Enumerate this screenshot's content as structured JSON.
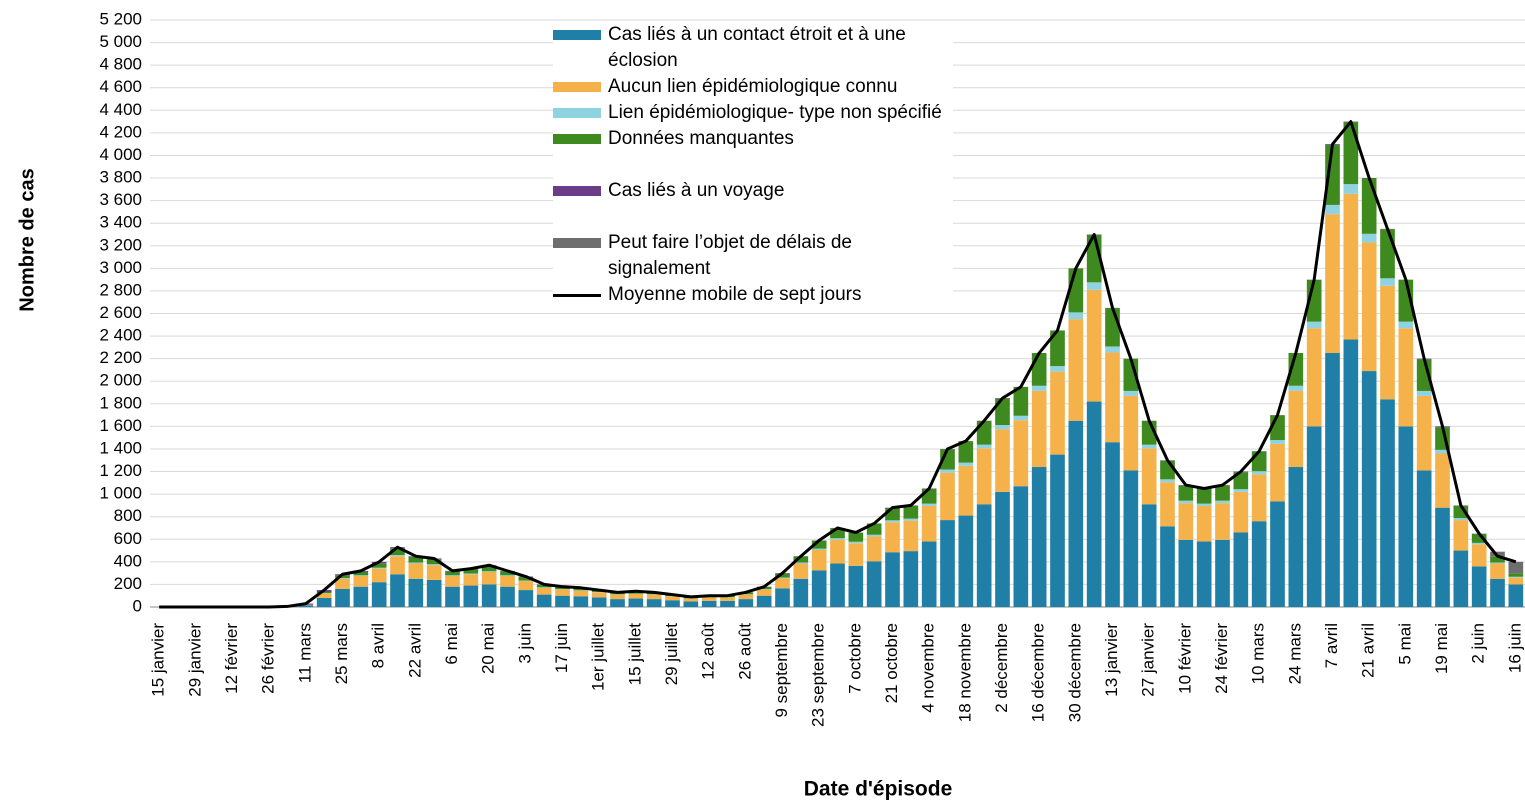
{
  "chart_data": {
    "type": "stacked-bar",
    "y_label": "Nombre de cas",
    "x_label": "Date d'épisode",
    "categories": [
      "15 janvier",
      null,
      "29 janvier",
      null,
      "12 février",
      null,
      "26 février",
      null,
      "11 mars",
      null,
      "25 mars",
      null,
      "8 avril",
      null,
      "22 avril",
      null,
      "6 mai",
      null,
      "20 mai",
      null,
      "3 juin",
      null,
      "17 juin",
      null,
      "1er juillet",
      null,
      "15 juillet",
      null,
      "29 juillet",
      null,
      "12 août",
      null,
      "26 août",
      null,
      "9 septembre",
      null,
      "23 septembre",
      null,
      "7 octobre",
      null,
      "21 octobre",
      null,
      "4 novembre",
      null,
      "18 novembre",
      null,
      "2 décembre",
      null,
      "16 décembre",
      null,
      "30 décembre",
      null,
      "13 janvier",
      null,
      "27 janvier",
      null,
      "10 février",
      null,
      "24 février",
      null,
      "10 mars",
      null,
      "24 mars",
      null,
      "7 avril",
      null,
      "21 avril",
      null,
      "5 mai",
      null,
      "19 mai",
      null,
      "2 juin",
      null,
      "16 juin"
    ],
    "series": [
      {
        "name": "Cas liés à un contact étroit et à une éclosion",
        "color": "#1f7fa6",
        "values": [
          0,
          0,
          0,
          0,
          0,
          0,
          0,
          3,
          15,
          80,
          160,
          180,
          220,
          290,
          250,
          240,
          180,
          190,
          200,
          180,
          150,
          110,
          100,
          95,
          85,
          70,
          75,
          70,
          60,
          50,
          55,
          55,
          70,
          100,
          165,
          250,
          325,
          385,
          365,
          405,
          485,
          495,
          580,
          770,
          810,
          910,
          1020,
          1070,
          1240,
          1350,
          1650,
          1820,
          1460,
          1210,
          910,
          715,
          595,
          580,
          595,
          660,
          760,
          935,
          1240,
          1600,
          2250,
          2370,
          2090,
          1840,
          1600,
          1210,
          880,
          500,
          360,
          250,
          200
        ]
      },
      {
        "name": "Aucun lien épidémiologique connu",
        "color": "#f5b24a",
        "values": [
          0,
          0,
          0,
          0,
          0,
          0,
          0,
          1,
          5,
          40,
          90,
          95,
          120,
          160,
          135,
          130,
          95,
          100,
          110,
          95,
          80,
          60,
          55,
          50,
          45,
          40,
          40,
          40,
          35,
          25,
          30,
          30,
          40,
          55,
          90,
          135,
          180,
          210,
          200,
          220,
          265,
          270,
          315,
          420,
          440,
          495,
          555,
          585,
          675,
          735,
          900,
          990,
          795,
          660,
          495,
          390,
          325,
          315,
          325,
          360,
          415,
          510,
          675,
          870,
          1230,
          1290,
          1140,
          1005,
          870,
          660,
          480,
          270,
          195,
          135,
          60
        ]
      },
      {
        "name": "Lien épidémiologique- type non spécifié",
        "color": "#8fd3e0",
        "values": [
          0,
          0,
          0,
          0,
          0,
          0,
          0,
          0,
          0,
          3,
          6,
          6,
          8,
          10,
          9,
          9,
          6,
          7,
          7,
          6,
          5,
          4,
          4,
          3,
          3,
          3,
          3,
          3,
          2,
          2,
          2,
          2,
          3,
          4,
          6,
          9,
          12,
          14,
          13,
          15,
          18,
          18,
          21,
          28,
          29,
          33,
          37,
          39,
          45,
          49,
          60,
          66,
          53,
          44,
          33,
          26,
          22,
          21,
          22,
          24,
          28,
          34,
          45,
          58,
          82,
          86,
          76,
          67,
          58,
          44,
          32,
          18,
          13,
          9,
          8
        ]
      },
      {
        "name": "Données manquantes",
        "color": "#3f8a1e",
        "values": [
          0,
          0,
          0,
          0,
          0,
          0,
          0,
          0,
          0,
          10,
          25,
          30,
          40,
          60,
          50,
          45,
          35,
          40,
          45,
          35,
          30,
          22,
          18,
          20,
          15,
          15,
          20,
          15,
          12,
          12,
          12,
          12,
          15,
          20,
          35,
          55,
          70,
          90,
          80,
          100,
          110,
          115,
          130,
          180,
          190,
          210,
          235,
          255,
          290,
          315,
          390,
          420,
          340,
          285,
          210,
          165,
          135,
          130,
          135,
          150,
          175,
          220,
          290,
          370,
          530,
          550,
          490,
          435,
          370,
          280,
          200,
          110,
          80,
          55,
          30
        ]
      },
      {
        "name": "Cas liés à un voyage",
        "color": "#6a3d8a",
        "values": [
          0,
          0,
          0,
          0,
          0,
          0,
          0,
          1,
          10,
          17,
          9,
          9,
          12,
          10,
          6,
          6,
          4,
          3,
          8,
          4,
          5,
          4,
          3,
          2,
          2,
          2,
          2,
          2,
          1,
          1,
          1,
          1,
          2,
          1,
          4,
          1,
          3,
          1,
          2,
          0,
          2,
          2,
          4,
          2,
          1,
          2,
          3,
          1,
          0,
          1,
          0,
          4,
          2,
          1,
          2,
          4,
          3,
          4,
          3,
          6,
          2,
          1,
          0,
          2,
          8,
          4,
          4,
          3,
          2,
          6,
          8,
          2,
          2,
          1,
          2
        ]
      },
      {
        "name": "Peut faire l’objet de délais de signalement",
        "color": "#6e6e6e",
        "values": [
          0,
          0,
          0,
          0,
          0,
          0,
          0,
          0,
          0,
          0,
          0,
          0,
          0,
          0,
          0,
          0,
          0,
          0,
          0,
          0,
          0,
          0,
          0,
          0,
          0,
          0,
          0,
          0,
          0,
          0,
          0,
          0,
          0,
          0,
          0,
          0,
          0,
          0,
          0,
          0,
          0,
          0,
          0,
          0,
          0,
          0,
          0,
          0,
          0,
          0,
          0,
          0,
          0,
          0,
          0,
          0,
          0,
          0,
          0,
          0,
          0,
          0,
          0,
          0,
          0,
          0,
          0,
          0,
          0,
          0,
          0,
          0,
          0,
          40,
          100
        ]
      }
    ],
    "line": {
      "name": "Moyenne mobile de sept jours",
      "color": "#000000",
      "values": [
        0,
        0,
        0,
        0,
        0,
        0,
        0,
        5,
        30,
        150,
        290,
        320,
        400,
        530,
        450,
        430,
        320,
        340,
        370,
        320,
        270,
        200,
        180,
        170,
        150,
        130,
        140,
        130,
        110,
        90,
        100,
        100,
        130,
        180,
        300,
        450,
        590,
        700,
        660,
        740,
        880,
        900,
        1050,
        1400,
        1470,
        1650,
        1850,
        1950,
        2250,
        2450,
        3000,
        3300,
        2650,
        2200,
        1650,
        1300,
        1080,
        1050,
        1080,
        1200,
        1380,
        1700,
        2250,
        2900,
        4100,
        4300,
        3800,
        3350,
        2900,
        2200,
        1600,
        900,
        650,
        450,
        400
      ]
    },
    "ylim": [
      0,
      5200
    ],
    "yticks": [
      0,
      200,
      400,
      600,
      800,
      {
        "value": 1000,
        "label": "1 000"
      },
      {
        "value": 1200,
        "label": "1 200"
      },
      {
        "value": 1400,
        "label": "1 400"
      },
      {
        "value": 1600,
        "label": "1 600"
      },
      {
        "value": 1800,
        "label": "1 800"
      },
      {
        "value": 2000,
        "label": "2 000"
      },
      {
        "value": 2200,
        "label": "2 200"
      },
      {
        "value": 2400,
        "label": "2 400"
      },
      {
        "value": 2600,
        "label": "2 600"
      },
      {
        "value": 2800,
        "label": "2 800"
      },
      {
        "value": 3000,
        "label": "3 000"
      },
      {
        "value": 3200,
        "label": "3 200"
      },
      {
        "value": 3400,
        "label": "3 400"
      },
      {
        "value": 3600,
        "label": "3 600"
      },
      {
        "value": 3800,
        "label": "3 800"
      },
      {
        "value": 4000,
        "label": "4 000"
      },
      {
        "value": 4200,
        "label": "4 200"
      },
      {
        "value": 4400,
        "label": "4 400"
      },
      {
        "value": 4600,
        "label": "4 600"
      },
      {
        "value": 4800,
        "label": "4 800"
      },
      {
        "value": 5000,
        "label": "5 000"
      },
      {
        "value": 5200,
        "label": "5 200"
      }
    ],
    "grid": true
  }
}
